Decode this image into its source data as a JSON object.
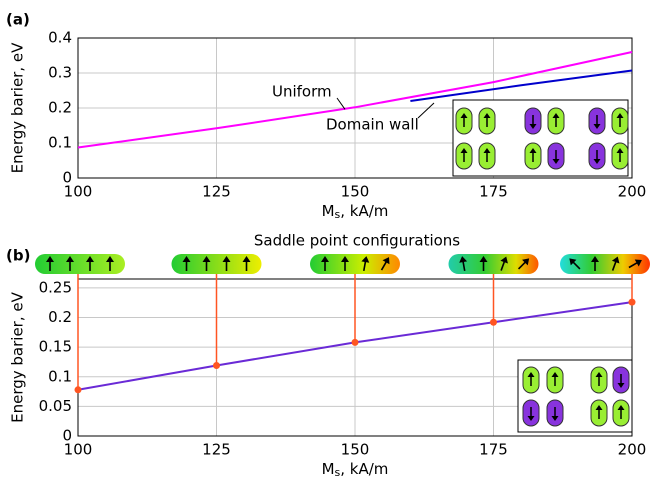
{
  "chart_data": [
    {
      "type": "line",
      "panel_label": "(a)",
      "ylabel": "Energy barier, eV",
      "xlabel": {
        "main": "M",
        "sub": "s",
        "rest": ", kA/m"
      },
      "xlim": [
        100,
        200
      ],
      "xticks": [
        100,
        125,
        150,
        175,
        200
      ],
      "ylim": [
        0,
        0.4
      ],
      "yticks": [
        0,
        0.1,
        0.2,
        0.3,
        0.4
      ],
      "grid": true,
      "series": [
        {
          "name": "Uniform",
          "color": "#ff00ff",
          "x": [
            100,
            125,
            150,
            175,
            200
          ],
          "values": [
            0.087,
            0.142,
            0.202,
            0.274,
            0.36
          ]
        },
        {
          "name": "Domain wall",
          "color": "#0000cc",
          "x": [
            160,
            180,
            200
          ],
          "values": [
            0.22,
            0.265,
            0.307
          ]
        }
      ]
    },
    {
      "type": "line",
      "panel_label": "(b)",
      "title": "Saddle point configurations",
      "ylabel": "Energy barier, eV",
      "xlabel": {
        "main": "M",
        "sub": "s",
        "rest": ", kA/m"
      },
      "xlim": [
        100,
        200
      ],
      "xticks": [
        100,
        125,
        150,
        175,
        200
      ],
      "ylim": [
        0,
        0.265
      ],
      "yticks": [
        0,
        0.05,
        0.1,
        0.15,
        0.2,
        0.25
      ],
      "grid": true,
      "series": [
        {
          "color": "#6a2ad6",
          "marker_color": "#ff5522",
          "x": [
            100,
            125,
            150,
            175,
            200
          ],
          "values": [
            0.078,
            0.119,
            0.158,
            0.192,
            0.226
          ]
        }
      ]
    }
  ]
}
